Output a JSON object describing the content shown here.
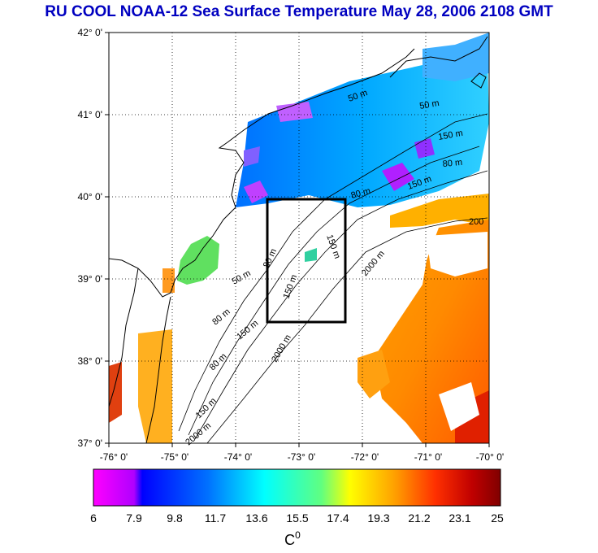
{
  "title": "RU COOL  NOAA-12 Sea Surface Temperature May 28, 2006 2108 GMT",
  "map": {
    "lat_ticks": [
      "42° 0'",
      "41° 0'",
      "40° 0'",
      "39° 0'",
      "38° 0'",
      "37° 0'"
    ],
    "lon_ticks": [
      "-76° 0'",
      "-75° 0'",
      "-74° 0'",
      "-73° 0'",
      "-72° 0'",
      "-71° 0'",
      "-70° 0'"
    ],
    "lat_range": [
      37,
      42
    ],
    "lon_range": [
      -76,
      -70
    ],
    "colors": {
      "land": "#ffffff",
      "cloud_mask": "#ffffff",
      "coastline": "#000000",
      "study_box": "#000000"
    },
    "contour_labels": [
      "50 m",
      "50 m",
      "50 m",
      "80 m",
      "80 m",
      "80 m",
      "80 m",
      "80 m",
      "150 m",
      "150 m",
      "150 m",
      "150 m",
      "150 m",
      "150 m",
      "2000 m",
      "2000 m",
      "2000 m",
      "200"
    ]
  },
  "colorbar": {
    "tick_labels": [
      "6",
      "7.9",
      "9.8",
      "11.7",
      "13.6",
      "15.5",
      "17.4",
      "19.3",
      "21.2",
      "23.1",
      "25"
    ],
    "unit_label": "C",
    "unit_superscript": "0",
    "range": [
      6,
      25
    ],
    "colors": [
      "#ff00ff",
      "#ff00ff",
      "#0000ff",
      "#0088ff",
      "#00ffff",
      "#80ff80",
      "#ffff00",
      "#ff8000",
      "#ff0000",
      "#c00000",
      "#800000"
    ]
  }
}
